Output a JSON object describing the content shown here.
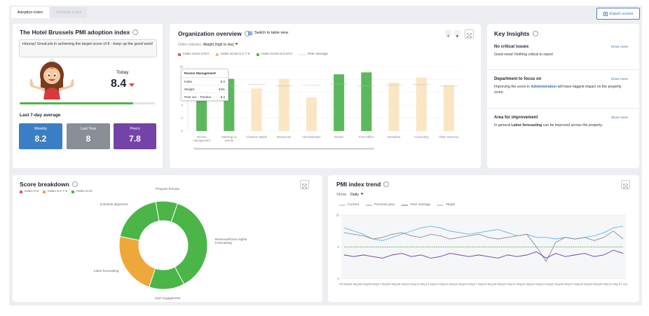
{
  "tabs": [
    "Adoption index",
    "GxDemo Index"
  ],
  "export_button": "Export scores",
  "adoption": {
    "title": "The Hotel Brussels PMI adoption index",
    "message": "Hooray! Great job in achieving the target score of 8 - keep up the good work!",
    "today_label": "Today",
    "today_value": 8.4,
    "progress_range": [
      0,
      10
    ],
    "average_title": "Last 7-day average",
    "averages": [
      {
        "label": "Weekly",
        "value": 8.2,
        "color": "#3a7ec6"
      },
      {
        "label": "Last Year",
        "value": 8,
        "color": "#8a8e97"
      },
      {
        "label": "Peers",
        "value": 7.8,
        "color": "#7443a8"
      }
    ]
  },
  "insights": {
    "title": "Key Insights",
    "items": [
      {
        "heading": "No critical issues",
        "link": "Show more",
        "text": [
          "Good news! Nothing critical to report"
        ]
      },
      {
        "heading": "Department to focus on",
        "link": "Show more",
        "text": [
          "Improving the score in ",
          "Administration",
          " will have biggest impact on the property score."
        ]
      },
      {
        "heading": "Area for improvement",
        "link": "Show more",
        "text": [
          "In general ",
          "Labor forecasting",
          " can be improved across the property."
        ]
      }
    ]
  },
  "chart_data": [
    {
      "type": "bar",
      "title": "Organization overview",
      "link": "Switch to table view",
      "order_label": "Order columns:",
      "order_value": "Weight (high to low)",
      "legend": [
        {
          "name": "Index score 0-5.0",
          "color": "#e05a5a"
        },
        {
          "name": "Index score 5.1-7.9",
          "color": "#f1c27a"
        },
        {
          "name": "Index score 8.0-10.0",
          "color": "#5cb85c"
        }
      ],
      "peer_legend": "Peer average",
      "categories": [
        "Rooms management",
        "Meetings & events",
        "Chamber Maids",
        "Restaurant",
        "Administration",
        "Kitchen",
        "Front Office",
        "Breakfast",
        "Accounting",
        "Other Revenue"
      ],
      "values": [
        9.0,
        8.1,
        6.6,
        8.1,
        5.2,
        8.8,
        9.1,
        7.5,
        8.3,
        7.1
      ],
      "colors": [
        "#5cb85c",
        "#5cb85c",
        "#fae5c4",
        "#fae5c4",
        "#fae5c4",
        "#5cb85c",
        "#5cb85c",
        "#fae5c4",
        "#fae5c4",
        "#fae5c4"
      ],
      "peer_values": [
        9.2,
        7.0,
        7.2,
        7.0,
        7.1,
        7.3,
        7.0,
        7.1,
        7.2,
        7.0
      ],
      "ylim": [
        0,
        10
      ],
      "yticks": [
        0,
        2,
        4,
        6,
        8,
        10
      ],
      "tooltip": {
        "title": "Rooms Management",
        "rows": [
          {
            "label": "Index",
            "value": "9.0"
          },
          {
            "label": "Weight",
            "value": "33%"
          },
          {
            "label": "Peer avr. - Pandox",
            "value": "9.2"
          }
        ]
      }
    },
    {
      "type": "donut",
      "title": "Score breakdown",
      "legend": [
        {
          "name": "Index 0-5",
          "color": "#e05a5a"
        },
        {
          "name": "Index 5.1-7.9",
          "color": "#eea83a"
        },
        {
          "name": "Index 8-10",
          "color": "#4bb547"
        }
      ],
      "categories": [
        "Program formats",
        "Revenue/Room nights Forecasting",
        "User engagement",
        "Labor forecasting",
        "Schedule alignment"
      ],
      "values": [
        8,
        37,
        13,
        23,
        19
      ],
      "colors": [
        "#4bb547",
        "#4bb547",
        "#4bb547",
        "#eea83a",
        "#4bb547"
      ]
    },
    {
      "type": "line",
      "title": "PMI index trend",
      "show_label": "Show:",
      "show_value": "Daily",
      "categories": [
        "03 May",
        "04 May",
        "05 May",
        "06 May",
        "07 May",
        "08 May",
        "09 May",
        "10 May",
        "11 May",
        "12 May",
        "13 May",
        "14 May",
        "15 May",
        "16 May",
        "17 May",
        "18 May",
        "19 May",
        "20 May",
        "21 May",
        "22 May",
        "23 May",
        "24 May",
        "25 May",
        "26 May",
        "27 May",
        "28 May",
        "29 May",
        "30 May",
        "31 May",
        "01 Jun"
      ],
      "ylim": [
        6,
        10
      ],
      "yticks": [
        6,
        8,
        10
      ],
      "series": [
        {
          "name": "Current",
          "color": "#5bb8e6",
          "values": [
            9.2,
            9.0,
            8.8,
            8.5,
            8.4,
            8.6,
            8.8,
            9.0,
            9.2,
            9.3,
            9.2,
            9.0,
            8.9,
            8.8,
            8.9,
            9.0,
            9.1,
            8.9,
            8.7,
            8.8,
            8.6,
            8.6,
            8.5,
            8.6,
            8.5,
            8.6,
            8.7,
            8.9,
            9.2,
            9.3
          ]
        },
        {
          "name": "Previous year",
          "color": "#8d8d8d",
          "values": [
            8.9,
            8.8,
            8.7,
            8.5,
            8.6,
            8.8,
            8.9,
            8.7,
            8.6,
            8.8,
            8.7,
            8.5,
            8.6,
            8.7,
            8.8,
            8.6,
            8.5,
            8.6,
            8.7,
            8.8,
            8.0,
            7.1,
            8.3,
            8.6,
            8.5,
            8.6,
            8.4,
            8.6,
            9.0,
            8.5
          ]
        },
        {
          "name": "Peer average",
          "color": "#6a3f9e",
          "values": [
            7.5,
            7.4,
            7.5,
            7.4,
            7.3,
            7.5,
            7.6,
            7.4,
            7.5,
            7.3,
            7.4,
            7.6,
            7.5,
            7.4,
            7.5,
            7.4,
            7.3,
            7.5,
            7.4,
            7.5,
            7.7,
            7.3,
            7.6,
            7.4,
            7.5,
            7.6,
            7.4,
            7.5,
            7.8,
            7.6
          ]
        },
        {
          "name": "Target",
          "color": "#3cb043",
          "dash": true,
          "values": [
            8,
            8,
            8,
            8,
            8,
            8,
            8,
            8,
            8,
            8,
            8,
            8,
            8,
            8,
            8,
            8,
            8,
            8,
            8,
            8,
            8,
            8,
            8,
            8,
            8,
            8,
            8,
            8,
            8,
            8
          ]
        }
      ]
    }
  ]
}
